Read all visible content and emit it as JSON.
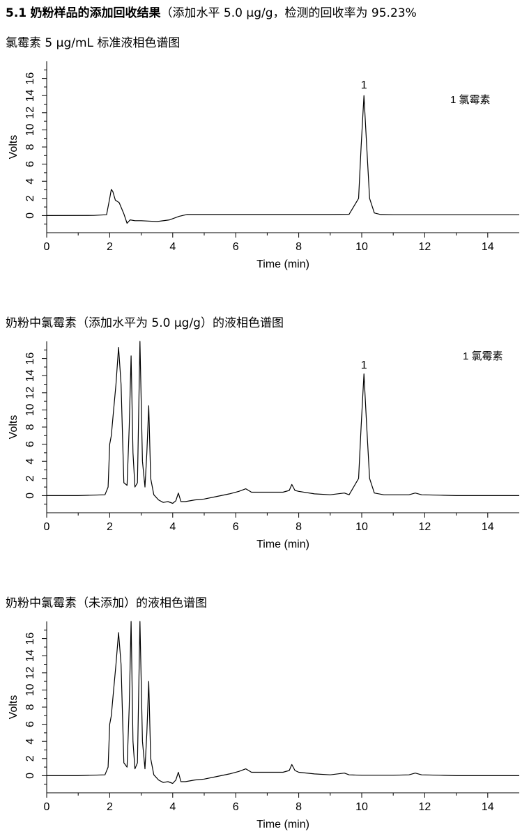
{
  "heading": {
    "number": "5.1",
    "bold_text": "奶粉样品的添加回收结果",
    "rest": "（添加水平 5.0 μg/g，检测的回收率为 95.23%"
  },
  "chart_data": [
    {
      "type": "line",
      "caption": "氯霉素 5 μg/mL 标准液相色谱图",
      "xlabel": "Time (min)",
      "ylabel": "Volts",
      "xlim": [
        0,
        15
      ],
      "ylim": [
        -2,
        18
      ],
      "xticks": [
        "0",
        "2",
        "4",
        "6",
        "8",
        "10",
        "12",
        "14"
      ],
      "yticks": [
        "0",
        "2",
        "4",
        "6",
        "8",
        "10",
        "12",
        "14",
        "16"
      ],
      "legend": "1  氯霉素",
      "legend_position": "top-right",
      "annotations": [
        {
          "label": "1",
          "x": 10.07,
          "y": 14.0
        }
      ],
      "series": [
        {
          "x": [
            0,
            1.5,
            1.9,
            2.0,
            2.05,
            2.1,
            2.18,
            2.3,
            2.45,
            2.55,
            2.6,
            2.65,
            2.8,
            3.0,
            3.5,
            3.9,
            4.2,
            4.45,
            5.0,
            6.0,
            7.0,
            8.0,
            9.0,
            9.6,
            9.9,
            9.98,
            10.07,
            10.16,
            10.25,
            10.4,
            10.6,
            11.0,
            12.0,
            13.0,
            14.0,
            15.0
          ],
          "y": [
            0,
            0.02,
            0.1,
            2.0,
            3.05,
            2.8,
            1.8,
            1.5,
            0.2,
            -0.9,
            -0.7,
            -0.5,
            -0.6,
            -0.6,
            -0.7,
            -0.5,
            -0.1,
            0.12,
            0.12,
            0.12,
            0.12,
            0.12,
            0.12,
            0.15,
            2.0,
            8.0,
            14.0,
            8.0,
            2.0,
            0.3,
            0.12,
            0.1,
            0.1,
            0.1,
            0.1,
            0.1
          ]
        }
      ]
    },
    {
      "type": "line",
      "caption": "奶粉中氯霉素（添加水平为 5.0 μg/g）的液相色谱图",
      "xlabel": "Time (min)",
      "ylabel": "Volts",
      "xlim": [
        0,
        15
      ],
      "ylim": [
        -2,
        18
      ],
      "xticks": [
        "0",
        "2",
        "4",
        "6",
        "8",
        "10",
        "12",
        "14"
      ],
      "yticks": [
        "0",
        "2",
        "4",
        "6",
        "8",
        "10",
        "12",
        "14",
        "16"
      ],
      "legend": "1  氯霉素",
      "legend_position": "top-right",
      "annotations": [
        {
          "label": "1",
          "x": 10.07,
          "y": 14.0
        }
      ],
      "series": [
        {
          "x": [
            0,
            1.0,
            1.85,
            1.95,
            2.0,
            2.05,
            2.1,
            2.2,
            2.28,
            2.36,
            2.45,
            2.55,
            2.62,
            2.68,
            2.74,
            2.8,
            2.88,
            2.96,
            3.04,
            3.12,
            3.18,
            3.24,
            3.3,
            3.4,
            3.55,
            3.7,
            3.85,
            4.0,
            4.1,
            4.18,
            4.26,
            4.4,
            4.7,
            5.0,
            5.4,
            5.8,
            6.1,
            6.32,
            6.5,
            7.0,
            7.5,
            7.7,
            7.78,
            7.88,
            8.0,
            8.5,
            9.0,
            9.45,
            9.6,
            9.9,
            9.98,
            10.07,
            10.16,
            10.25,
            10.4,
            10.7,
            11.5,
            11.7,
            11.9,
            12.5,
            13.0,
            14.0,
            15.0
          ],
          "y": [
            0,
            0.0,
            0.1,
            1.0,
            6.0,
            7.0,
            9.0,
            13.0,
            17.3,
            13.0,
            1.5,
            1.2,
            8.0,
            16.3,
            5.0,
            1.0,
            1.5,
            18.0,
            4.0,
            1.0,
            5.0,
            10.5,
            2.0,
            0.1,
            -0.5,
            -0.8,
            -0.7,
            -0.9,
            -0.6,
            0.3,
            -0.7,
            -0.7,
            -0.5,
            -0.4,
            -0.1,
            0.2,
            0.5,
            0.8,
            0.4,
            0.4,
            0.4,
            0.6,
            1.3,
            0.6,
            0.5,
            0.2,
            0.1,
            0.3,
            0.1,
            2.0,
            8.0,
            14.2,
            8.0,
            2.0,
            0.3,
            0.1,
            0.1,
            0.3,
            0.1,
            0.05,
            0.0,
            0.0,
            0.0
          ]
        }
      ]
    },
    {
      "type": "line",
      "caption": "奶粉中氯霉素（未添加）的液相色谱图",
      "xlabel": "Time (min)",
      "ylabel": "Volts",
      "xlim": [
        0,
        15
      ],
      "ylim": [
        -2,
        18
      ],
      "xticks": [
        "0",
        "2",
        "4",
        "6",
        "8",
        "10",
        "12",
        "14"
      ],
      "yticks": [
        "0",
        "2",
        "4",
        "6",
        "8",
        "10",
        "12",
        "14",
        "16"
      ],
      "legend": "",
      "annotations": [],
      "series": [
        {
          "x": [
            0,
            1.0,
            1.85,
            1.95,
            2.0,
            2.05,
            2.1,
            2.2,
            2.28,
            2.36,
            2.45,
            2.55,
            2.62,
            2.68,
            2.74,
            2.8,
            2.88,
            2.96,
            3.04,
            3.12,
            3.18,
            3.24,
            3.3,
            3.4,
            3.55,
            3.7,
            3.85,
            4.0,
            4.1,
            4.18,
            4.26,
            4.4,
            4.7,
            5.0,
            5.4,
            5.8,
            6.1,
            6.32,
            6.5,
            7.0,
            7.5,
            7.7,
            7.78,
            7.88,
            8.0,
            8.5,
            9.0,
            9.45,
            9.6,
            10.0,
            11.0,
            11.5,
            11.7,
            11.9,
            12.5,
            13.0,
            14.0,
            15.0
          ],
          "y": [
            0,
            0.0,
            0.1,
            1.0,
            6.0,
            7.0,
            9.0,
            13.0,
            16.7,
            13.0,
            1.5,
            1.0,
            8.0,
            18.0,
            4.0,
            0.8,
            1.5,
            18.0,
            4.0,
            0.8,
            5.0,
            11.0,
            2.0,
            0.1,
            -0.5,
            -0.8,
            -0.7,
            -0.9,
            -0.5,
            0.4,
            -0.7,
            -0.7,
            -0.5,
            -0.4,
            -0.1,
            0.2,
            0.5,
            0.8,
            0.4,
            0.4,
            0.4,
            0.6,
            1.3,
            0.6,
            0.4,
            0.2,
            0.1,
            0.3,
            0.1,
            0.05,
            0.05,
            0.1,
            0.3,
            0.1,
            0.05,
            0.0,
            0.0,
            0.0
          ]
        }
      ]
    }
  ]
}
